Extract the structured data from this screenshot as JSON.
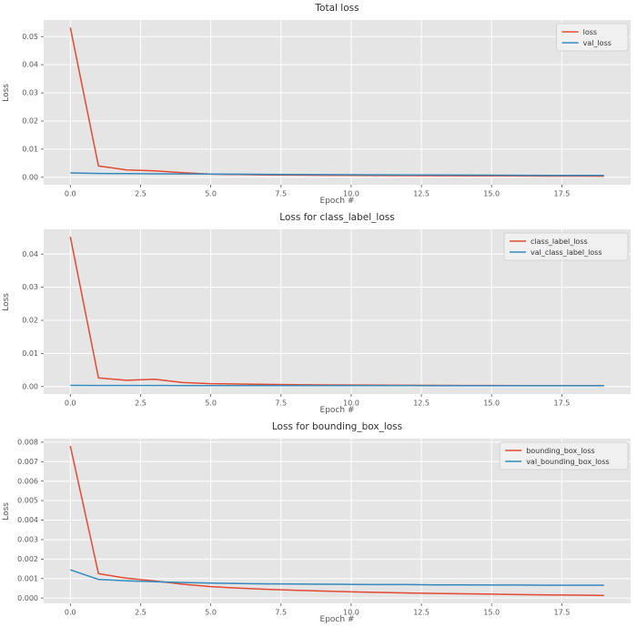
{
  "style": {
    "page_bg": "#ffffff",
    "axes_bg": "#e5e5e5",
    "grid_color": "#ffffff",
    "tick_color": "#555555",
    "title_color": "#2f2f2f",
    "legend_bg": "#f0f0f0",
    "legend_border": "#cccccc",
    "legend_text": "#333333",
    "red": "#e24a33",
    "blue": "#348abd"
  },
  "chart_data": [
    {
      "type": "line",
      "title": "Total loss",
      "xlabel": "Epoch #",
      "ylabel": "Loss",
      "grid": true,
      "legend_position": "upper right",
      "xlim": [
        -0.95,
        19.95
      ],
      "ylim": [
        -0.00266,
        0.0559
      ],
      "x_ticks": [
        0,
        2.5,
        5,
        7.5,
        10,
        12.5,
        15,
        17.5
      ],
      "x_tick_labels": [
        "0.0",
        "2.5",
        "5.0",
        "7.5",
        "10.0",
        "12.5",
        "15.0",
        "17.5"
      ],
      "y_ticks": [
        0,
        0.01,
        0.02,
        0.03,
        0.04,
        0.05
      ],
      "y_tick_labels": [
        "0.00",
        "0.01",
        "0.02",
        "0.03",
        "0.04",
        "0.05"
      ],
      "x": [
        0,
        1,
        2,
        3,
        4,
        5,
        6,
        7,
        8,
        9,
        10,
        11,
        12,
        13,
        14,
        15,
        16,
        17,
        18,
        19
      ],
      "series": [
        {
          "name": "loss",
          "color": "#e24a33",
          "values": [
            0.0532,
            0.004,
            0.0026,
            0.0023,
            0.0016,
            0.0011,
            0.00095,
            0.00085,
            0.00078,
            0.00072,
            0.00066,
            0.00061,
            0.00057,
            0.00053,
            0.0005,
            0.00047,
            0.00044,
            0.00042,
            0.0004,
            0.00038
          ]
        },
        {
          "name": "val_loss",
          "color": "#348abd",
          "values": [
            0.00155,
            0.00135,
            0.00128,
            0.00123,
            0.00118,
            0.00113,
            0.00108,
            0.00103,
            0.00098,
            0.00094,
            0.0009,
            0.00086,
            0.00082,
            0.00079,
            0.00076,
            0.00073,
            0.0007,
            0.00068,
            0.00066,
            0.00064
          ]
        }
      ]
    },
    {
      "type": "line",
      "title": "Loss for class_label_loss",
      "xlabel": "Epoch #",
      "ylabel": "Loss",
      "grid": true,
      "legend_position": "upper right",
      "xlim": [
        -0.95,
        19.95
      ],
      "ylim": [
        -0.00226,
        0.04746
      ],
      "x_ticks": [
        0,
        2.5,
        5,
        7.5,
        10,
        12.5,
        15,
        17.5
      ],
      "x_tick_labels": [
        "0.0",
        "2.5",
        "5.0",
        "7.5",
        "10.0",
        "12.5",
        "15.0",
        "17.5"
      ],
      "y_ticks": [
        0,
        0.01,
        0.02,
        0.03,
        0.04
      ],
      "y_tick_labels": [
        "0.00",
        "0.01",
        "0.02",
        "0.03",
        "0.04"
      ],
      "x": [
        0,
        1,
        2,
        3,
        4,
        5,
        6,
        7,
        8,
        9,
        10,
        11,
        12,
        13,
        14,
        15,
        16,
        17,
        18,
        19
      ],
      "series": [
        {
          "name": "class_label_loss",
          "color": "#e24a33",
          "values": [
            0.0452,
            0.0026,
            0.0019,
            0.0022,
            0.0012,
            0.00088,
            0.00075,
            0.00064,
            0.00056,
            0.0005,
            0.00045,
            0.00041,
            0.00038,
            0.00035,
            0.00033,
            0.00031,
            0.00029,
            0.00028,
            0.00027,
            0.00026
          ]
        },
        {
          "name": "val_class_label_loss",
          "color": "#348abd",
          "values": [
            0.00035,
            0.00033,
            0.00032,
            0.00031,
            0.0003,
            0.00029,
            0.00029,
            0.00028,
            0.00028,
            0.00027,
            0.00027,
            0.00026,
            0.00026,
            0.00025,
            0.00025,
            0.00025,
            0.00024,
            0.00024,
            0.00024,
            0.00023
          ]
        }
      ]
    },
    {
      "type": "line",
      "title": "Loss for bounding_box_loss",
      "xlabel": "Epoch #",
      "ylabel": "Loss",
      "grid": true,
      "legend_position": "upper right",
      "xlim": [
        -0.95,
        19.95
      ],
      "ylim": [
        -0.00027,
        0.00818
      ],
      "x_ticks": [
        0,
        2.5,
        5,
        7.5,
        10,
        12.5,
        15,
        17.5
      ],
      "x_tick_labels": [
        "0.0",
        "2.5",
        "5.0",
        "7.5",
        "10.0",
        "12.5",
        "15.0",
        "17.5"
      ],
      "y_ticks": [
        0,
        0.001,
        0.002,
        0.003,
        0.004,
        0.005,
        0.006,
        0.007,
        0.008
      ],
      "y_tick_labels": [
        "0.000",
        "0.001",
        "0.002",
        "0.003",
        "0.004",
        "0.005",
        "0.006",
        "0.007",
        "0.008"
      ],
      "x": [
        0,
        1,
        2,
        3,
        4,
        5,
        6,
        7,
        8,
        9,
        10,
        11,
        12,
        13,
        14,
        15,
        16,
        17,
        18,
        19
      ],
      "series": [
        {
          "name": "bounding_box_loss",
          "color": "#e24a33",
          "values": [
            0.0078,
            0.00125,
            0.00102,
            0.00088,
            0.00071,
            0.00059,
            0.00051,
            0.00045,
            0.0004,
            0.00036,
            0.00032,
            0.00029,
            0.00026,
            0.00024,
            0.00022,
            0.0002,
            0.00018,
            0.00016,
            0.00015,
            0.00013
          ]
        },
        {
          "name": "val_bounding_box_loss",
          "color": "#348abd",
          "values": [
            0.00145,
            0.00096,
            0.00089,
            0.00084,
            0.0008,
            0.00077,
            0.00075,
            0.00073,
            0.00072,
            0.00071,
            0.0007,
            0.00069,
            0.00069,
            0.00068,
            0.00068,
            0.00067,
            0.00067,
            0.00066,
            0.00066,
            0.00066
          ]
        }
      ]
    }
  ]
}
